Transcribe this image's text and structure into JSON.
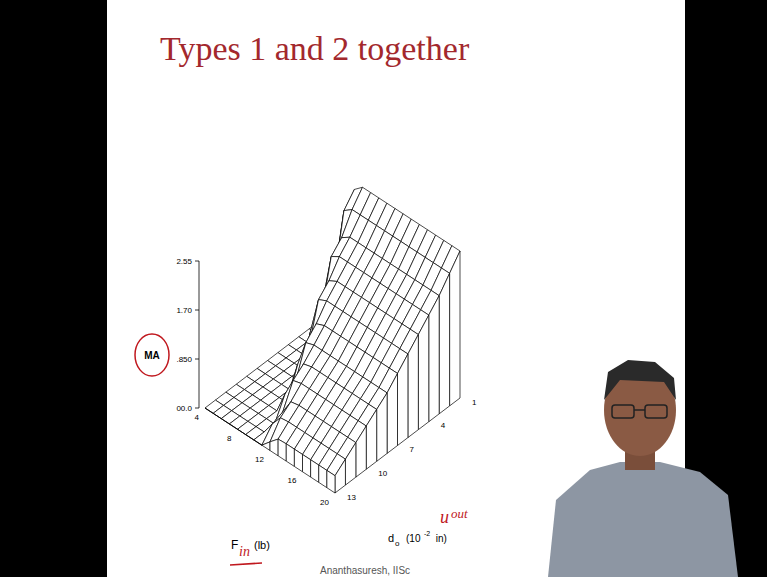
{
  "footer": "Ananthasuresh, IISc",
  "chart_data": {
    "type": "surface",
    "title": "Types 1 and 2 together",
    "z_label": "MA",
    "x_label": "F",
    "x_label_sub": "in",
    "x_label_unit": "(lb)",
    "y_label": "d",
    "y_label_sub": "o",
    "y_label_unit_pre": "(10",
    "y_label_unit_sup": "-2",
    "y_label_unit_post": " in)",
    "annotation": "u",
    "annotation_sub": "out",
    "color": "#000000",
    "x": [
      4,
      5,
      6,
      7,
      8,
      9,
      10,
      11,
      12,
      13,
      14,
      15,
      16,
      17,
      18,
      19,
      20
    ],
    "y": [
      1,
      2,
      3,
      4,
      5,
      6,
      7,
      8,
      9,
      10,
      11,
      12,
      13
    ],
    "z": [
      [
        0,
        0,
        1.28,
        2.42,
        2.55,
        2.55,
        2.55,
        2.55,
        2.55,
        2.55,
        2.55,
        2.55,
        2.55,
        2.55,
        2.55,
        2.55,
        2.55
      ],
      [
        0,
        0,
        1.15,
        2.19,
        2.3,
        2.3,
        2.3,
        2.3,
        2.3,
        2.3,
        2.3,
        2.3,
        2.3,
        2.3,
        2.3,
        2.3,
        2.3
      ],
      [
        0,
        0,
        0,
        1.03,
        1.95,
        2.05,
        2.05,
        2.05,
        2.05,
        2.05,
        2.05,
        2.05,
        2.05,
        2.05,
        2.05,
        2.05,
        2.05
      ],
      [
        0,
        0,
        0,
        0.93,
        1.76,
        1.85,
        1.85,
        1.85,
        1.85,
        1.85,
        1.85,
        1.85,
        1.85,
        1.85,
        1.85,
        1.85,
        1.85
      ],
      [
        0,
        0,
        0,
        0,
        0.83,
        1.57,
        1.65,
        1.65,
        1.65,
        1.65,
        1.65,
        1.65,
        1.65,
        1.65,
        1.65,
        1.65,
        1.65
      ],
      [
        0,
        0,
        0,
        0,
        0.73,
        1.38,
        1.45,
        1.45,
        1.45,
        1.45,
        1.45,
        1.45,
        1.45,
        1.45,
        1.45,
        1.45,
        1.45
      ],
      [
        0,
        0,
        0,
        0,
        0,
        0.63,
        1.19,
        1.25,
        1.25,
        1.25,
        1.25,
        1.25,
        1.25,
        1.25,
        1.25,
        1.25,
        1.25
      ],
      [
        0,
        0,
        0,
        0,
        0,
        0.53,
        1.0,
        1.05,
        1.05,
        1.05,
        1.05,
        1.05,
        1.05,
        1.05,
        1.05,
        1.05,
        1.05
      ],
      [
        0,
        0,
        0,
        0,
        0,
        0,
        0.45,
        0.86,
        0.9,
        0.9,
        0.9,
        0.9,
        0.9,
        0.9,
        0.9,
        0.9,
        0.9
      ],
      [
        0,
        0,
        0,
        0,
        0,
        0,
        0.38,
        0.71,
        0.75,
        0.75,
        0.75,
        0.75,
        0.75,
        0.75,
        0.75,
        0.75,
        0.75
      ],
      [
        0,
        0,
        0,
        0,
        0,
        0,
        0,
        0.3,
        0.57,
        0.6,
        0.6,
        0.6,
        0.6,
        0.6,
        0.6,
        0.6,
        0.6
      ],
      [
        0,
        0,
        0,
        0,
        0,
        0,
        0,
        0.23,
        0.43,
        0.45,
        0.45,
        0.45,
        0.45,
        0.45,
        0.45,
        0.45,
        0.45
      ],
      [
        0,
        0,
        0,
        0,
        0,
        0,
        0,
        0,
        0.15,
        0.29,
        0.3,
        0.3,
        0.3,
        0.3,
        0.3,
        0.3,
        0.3
      ]
    ],
    "xlim": [
      4,
      20
    ],
    "xticks": [
      4,
      8,
      12,
      16,
      20
    ],
    "ylim": [
      1,
      13
    ],
    "yticks": [
      1,
      4,
      7,
      10,
      13
    ],
    "zlim": [
      0,
      2.55
    ],
    "zticks": [
      {
        "value": 0,
        "label": "00.0"
      },
      {
        "value": 0.85,
        "label": ".850"
      },
      {
        "value": 1.7,
        "label": "1.70"
      },
      {
        "value": 2.55,
        "label": "2.55"
      }
    ]
  }
}
